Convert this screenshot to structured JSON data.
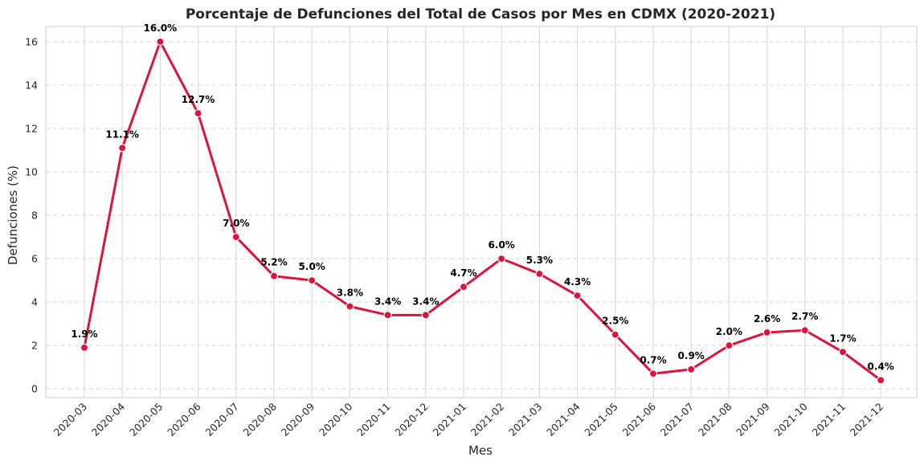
{
  "chart_data": {
    "type": "line",
    "title": "Porcentaje de Defunciones del Total de Casos por Mes en CDMX (2020-2021)",
    "xlabel": "Mes",
    "ylabel": "Defunciones (%)",
    "categories": [
      "2020-03",
      "2020-04",
      "2020-05",
      "2020-06",
      "2020-07",
      "2020-08",
      "2020-09",
      "2020-10",
      "2020-11",
      "2020-12",
      "2021-01",
      "2021-02",
      "2021-03",
      "2021-04",
      "2021-05",
      "2021-06",
      "2021-07",
      "2021-08",
      "2021-09",
      "2021-10",
      "2021-11",
      "2021-12"
    ],
    "series": [
      {
        "values": [
          1.9,
          11.1,
          16.0,
          12.7,
          7.0,
          5.2,
          5.0,
          3.8,
          3.4,
          3.4,
          4.7,
          6.0,
          5.3,
          4.3,
          2.5,
          0.7,
          0.9,
          2.0,
          2.6,
          2.7,
          1.7,
          0.4
        ],
        "data_labels": [
          "1.9%",
          "11.1%",
          "16.0%",
          "12.7%",
          "7.0%",
          "5.2%",
          "5.0%",
          "3.8%",
          "3.4%",
          "3.4%",
          "4.7%",
          "6.0%",
          "5.3%",
          "4.3%",
          "2.5%",
          "0.7%",
          "0.9%",
          "2.0%",
          "2.6%",
          "2.7%",
          "1.7%",
          "0.4%"
        ],
        "color": "#dc143c"
      }
    ],
    "yticks": [
      0,
      2,
      4,
      6,
      8,
      10,
      12,
      14,
      16
    ],
    "ylim": [
      -0.4,
      16.7
    ],
    "grid": {
      "x": "solid",
      "y": "dashed"
    },
    "colors": {
      "line": "#dc143c",
      "grid": "#d5d5d5",
      "axes": "#cccccc",
      "text": "#262626"
    }
  }
}
